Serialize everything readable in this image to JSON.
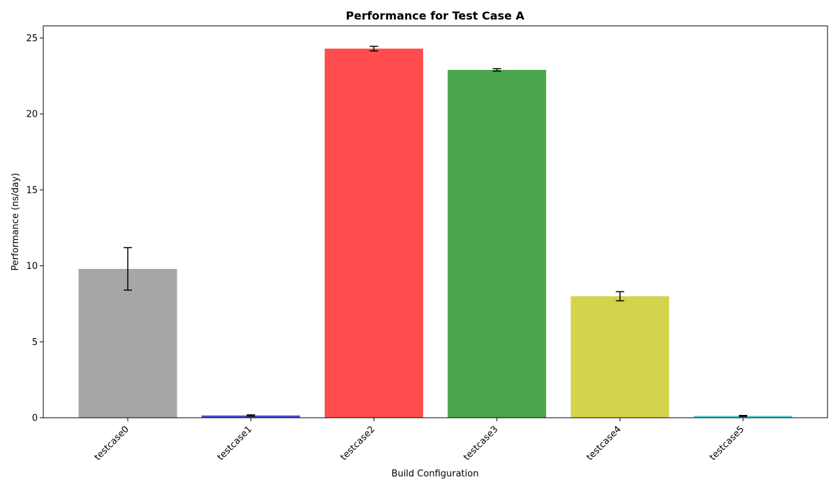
{
  "chart_data": {
    "type": "bar",
    "title": "Performance for Test Case A",
    "xlabel": "Build Configuration",
    "ylabel": "Performance (ns/day)",
    "categories": [
      "testcase0",
      "testcase1",
      "testcase2",
      "testcase3",
      "testcase4",
      "testcase5"
    ],
    "values": [
      9.8,
      0.15,
      24.3,
      22.9,
      8.0,
      0.12
    ],
    "errors": [
      1.4,
      0.04,
      0.15,
      0.08,
      0.3,
      0.03
    ],
    "colors": [
      "#a6a6a6",
      "#4a4acc",
      "#ff4c4c",
      "#4ca64c",
      "#d4d44c",
      "#4cd4d4"
    ],
    "ylim": [
      0,
      25.8
    ],
    "yticks": [
      0,
      5,
      10,
      15,
      20,
      25
    ],
    "grid": false,
    "legend": "none"
  }
}
